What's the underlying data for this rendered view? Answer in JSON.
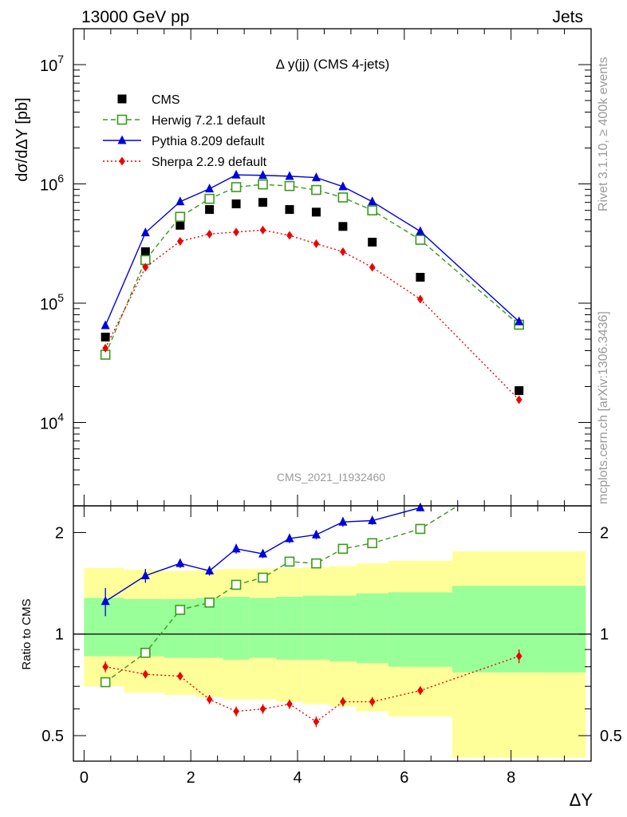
{
  "header": {
    "left": "13000 GeV pp",
    "right": "Jets"
  },
  "side_labels": {
    "top": "Rivet 3.1.10, ≥ 400k events",
    "bottom": "mcplots.cern.ch [arXiv:1306.3436]"
  },
  "chart_data": [
    {
      "type": "scatter",
      "title": "Δ y(jj) (CMS 4-jets)",
      "ylabel": "dσ/dΔY [pb]",
      "yscale": "log",
      "ylim": [
        2000,
        20000000
      ],
      "xlim": [
        -0.2,
        9.5
      ],
      "y_ticks": [
        {
          "value": 10000,
          "label": "10^4"
        },
        {
          "value": 100000,
          "label": "10^5"
        },
        {
          "value": 1000000,
          "label": "10^6"
        },
        {
          "value": 10000000,
          "label": "10^7"
        }
      ],
      "watermark": "CMS_2021_I1932460",
      "legend_position": "top-left",
      "series": [
        {
          "name": "CMS",
          "style": "marker",
          "marker": "square-filled",
          "color": "#000000",
          "x": [
            0.4,
            1.15,
            1.8,
            2.35,
            2.85,
            3.35,
            3.85,
            4.35,
            4.85,
            5.4,
            6.3,
            8.15
          ],
          "y": [
            52000,
            270000,
            450000,
            610000,
            680000,
            700000,
            610000,
            580000,
            440000,
            325000,
            165000,
            18500
          ]
        },
        {
          "name": "Herwig 7.2.1 default",
          "style": "dashed",
          "marker": "square-open",
          "color": "#3a9a1a",
          "x": [
            0.4,
            1.15,
            1.8,
            2.35,
            2.85,
            3.35,
            3.85,
            4.35,
            4.85,
            5.4,
            6.3,
            8.15
          ],
          "y": [
            37000,
            230000,
            530000,
            750000,
            940000,
            990000,
            960000,
            890000,
            770000,
            600000,
            340000,
            66000
          ]
        },
        {
          "name": "Pythia 8.209 default",
          "style": "solid",
          "marker": "triangle-filled",
          "color": "#0000dd",
          "x": [
            0.4,
            1.15,
            1.8,
            2.35,
            2.85,
            3.35,
            3.85,
            4.35,
            4.85,
            5.4,
            6.3,
            8.15
          ],
          "y": [
            65000,
            390000,
            710000,
            910000,
            1190000,
            1180000,
            1160000,
            1130000,
            950000,
            710000,
            400000,
            70000
          ]
        },
        {
          "name": "Sherpa 2.2.9 default",
          "style": "dotted",
          "marker": "diamond-filled",
          "color": "#ee0000",
          "x": [
            0.4,
            1.15,
            1.8,
            2.35,
            2.85,
            3.35,
            3.85,
            4.35,
            4.85,
            5.4,
            6.3,
            8.15
          ],
          "y": [
            42000,
            200000,
            330000,
            380000,
            395000,
            410000,
            370000,
            315000,
            270000,
            200000,
            108000,
            15500
          ]
        }
      ]
    },
    {
      "type": "scatter",
      "title": "",
      "xlabel": "ΔY",
      "ylabel": "Ratio to CMS",
      "yscale": "log",
      "ylim": [
        0.42,
        2.4
      ],
      "xlim": [
        -0.2,
        9.5
      ],
      "reference_line": 1,
      "x_ticks": [
        0,
        2,
        4,
        6,
        8
      ],
      "y_ticks": [
        {
          "value": 0.5,
          "label": "0.5"
        },
        {
          "value": 1,
          "label": "1"
        },
        {
          "value": 2,
          "label": "2"
        }
      ],
      "bands": {
        "x_edges": [
          0.0,
          0.75,
          1.5,
          2.1,
          2.6,
          3.1,
          3.6,
          4.1,
          4.6,
          5.1,
          5.7,
          6.9,
          9.4
        ],
        "inner": {
          "color": "#99ff99",
          "low": [
            0.86,
            0.86,
            0.85,
            0.85,
            0.84,
            0.85,
            0.84,
            0.84,
            0.83,
            0.82,
            0.8,
            0.77
          ],
          "high": [
            1.28,
            1.27,
            1.27,
            1.28,
            1.29,
            1.28,
            1.29,
            1.3,
            1.3,
            1.32,
            1.33,
            1.39
          ]
        },
        "outer": {
          "color": "#ffff99",
          "low": [
            0.7,
            0.67,
            0.66,
            0.65,
            0.64,
            0.64,
            0.63,
            0.62,
            0.61,
            0.59,
            0.57,
            0.43
          ],
          "high": [
            1.57,
            1.55,
            1.54,
            1.55,
            1.56,
            1.56,
            1.57,
            1.58,
            1.59,
            1.62,
            1.65,
            1.76
          ]
        }
      },
      "series": [
        {
          "name": "Herwig 7.2.1 default",
          "color": "#3a9a1a",
          "marker": "square-open",
          "style": "dashed",
          "x": [
            0.4,
            1.15,
            1.8,
            2.35,
            2.85,
            3.35,
            3.85,
            4.35,
            4.85,
            5.4,
            6.3,
            7.0
          ],
          "y": [
            0.72,
            0.88,
            1.18,
            1.24,
            1.4,
            1.47,
            1.64,
            1.62,
            1.79,
            1.86,
            2.05,
            2.4
          ],
          "markers_shown": 11
        },
        {
          "name": "Pythia 8.209 default",
          "color": "#0000dd",
          "marker": "triangle-filled",
          "style": "solid",
          "x": [
            0.4,
            1.15,
            1.8,
            2.35,
            2.85,
            3.35,
            3.85,
            4.35,
            4.85,
            5.4,
            6.3
          ],
          "y": [
            1.25,
            1.49,
            1.62,
            1.54,
            1.79,
            1.73,
            1.92,
            1.97,
            2.15,
            2.17,
            2.37
          ],
          "err": [
            0.12,
            0.07,
            0.05,
            0.05,
            0.06,
            0.05,
            0.06,
            0.06,
            0.07,
            0.06,
            0.06
          ]
        },
        {
          "name": "Sherpa 2.2.9 default",
          "color": "#ee0000",
          "marker": "diamond-filled",
          "style": "dotted",
          "x": [
            0.4,
            1.15,
            1.8,
            2.35,
            2.85,
            3.35,
            3.85,
            4.35,
            4.85,
            5.4,
            6.3,
            8.15
          ],
          "y": [
            0.8,
            0.76,
            0.75,
            0.64,
            0.59,
            0.6,
            0.62,
            0.55,
            0.63,
            0.63,
            0.68,
            0.86
          ],
          "err": [
            0.03,
            0.02,
            0.02,
            0.02,
            0.02,
            0.02,
            0.02,
            0.02,
            0.02,
            0.02,
            0.02,
            0.04
          ]
        }
      ]
    }
  ]
}
